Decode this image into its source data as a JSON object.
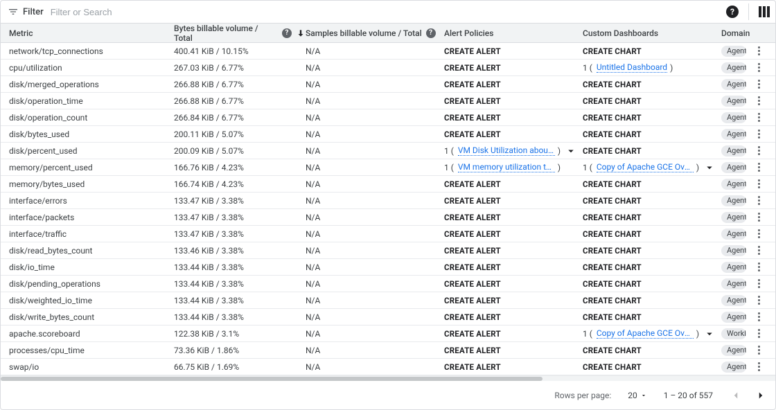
{
  "filter": {
    "label": "Filter",
    "placeholder": "Filter or Search"
  },
  "columns": {
    "metric": "Metric",
    "bytes": "Bytes billable volume / Total",
    "samples": "Samples billable volume / Total",
    "alert": "Alert Policies",
    "dash": "Custom Dashboards",
    "domain": "Domain"
  },
  "labels": {
    "create_alert": "CREATE ALERT",
    "create_chart": "CREATE CHART"
  },
  "pagination": {
    "rows_label": "Rows per page:",
    "rows_value": "20",
    "range": "1 – 20 of 557"
  },
  "domain_chips": {
    "agent": "Agent",
    "workload": "Workload"
  },
  "rows": [
    {
      "metric": "network/tcp_connections",
      "bytes": "400.41 KiB / 10.15%",
      "samples": "N/A",
      "alert": null,
      "dash": null,
      "domain": "agent"
    },
    {
      "metric": "cpu/utilization",
      "bytes": "267.03 KiB / 6.77%",
      "samples": "N/A",
      "alert": null,
      "dash": {
        "count": 1,
        "text": "Untitled Dashboard",
        "expand": false
      },
      "domain": "agent"
    },
    {
      "metric": "disk/merged_operations",
      "bytes": "266.88 KiB / 6.77%",
      "samples": "N/A",
      "alert": null,
      "dash": null,
      "domain": "agent"
    },
    {
      "metric": "disk/operation_time",
      "bytes": "266.88 KiB / 6.77%",
      "samples": "N/A",
      "alert": null,
      "dash": null,
      "domain": "agent"
    },
    {
      "metric": "disk/operation_count",
      "bytes": "266.84 KiB / 6.77%",
      "samples": "N/A",
      "alert": null,
      "dash": null,
      "domain": "agent"
    },
    {
      "metric": "disk/bytes_used",
      "bytes": "200.11 KiB / 5.07%",
      "samples": "N/A",
      "alert": null,
      "dash": null,
      "domain": "agent"
    },
    {
      "metric": "disk/percent_used",
      "bytes": "200.09 KiB / 5.07%",
      "samples": "N/A",
      "alert": {
        "count": 1,
        "text": "VM Disk Utilization about …",
        "expand": true
      },
      "dash": null,
      "domain": "agent"
    },
    {
      "metric": "memory/percent_used",
      "bytes": "166.76 KiB / 4.23%",
      "samples": "N/A",
      "alert": {
        "count": 1,
        "text": "VM memory utilization too high",
        "expand": false
      },
      "dash": {
        "count": 1,
        "text": "Copy of Apache GCE Over…",
        "expand": true
      },
      "domain": "agent"
    },
    {
      "metric": "memory/bytes_used",
      "bytes": "166.74 KiB / 4.23%",
      "samples": "N/A",
      "alert": null,
      "dash": null,
      "domain": "agent"
    },
    {
      "metric": "interface/errors",
      "bytes": "133.47 KiB / 3.38%",
      "samples": "N/A",
      "alert": null,
      "dash": null,
      "domain": "agent"
    },
    {
      "metric": "interface/packets",
      "bytes": "133.47 KiB / 3.38%",
      "samples": "N/A",
      "alert": null,
      "dash": null,
      "domain": "agent"
    },
    {
      "metric": "interface/traffic",
      "bytes": "133.47 KiB / 3.38%",
      "samples": "N/A",
      "alert": null,
      "dash": null,
      "domain": "agent"
    },
    {
      "metric": "disk/read_bytes_count",
      "bytes": "133.46 KiB / 3.38%",
      "samples": "N/A",
      "alert": null,
      "dash": null,
      "domain": "agent"
    },
    {
      "metric": "disk/io_time",
      "bytes": "133.44 KiB / 3.38%",
      "samples": "N/A",
      "alert": null,
      "dash": null,
      "domain": "agent"
    },
    {
      "metric": "disk/pending_operations",
      "bytes": "133.44 KiB / 3.38%",
      "samples": "N/A",
      "alert": null,
      "dash": null,
      "domain": "agent"
    },
    {
      "metric": "disk/weighted_io_time",
      "bytes": "133.44 KiB / 3.38%",
      "samples": "N/A",
      "alert": null,
      "dash": null,
      "domain": "agent"
    },
    {
      "metric": "disk/write_bytes_count",
      "bytes": "133.44 KiB / 3.38%",
      "samples": "N/A",
      "alert": null,
      "dash": null,
      "domain": "agent"
    },
    {
      "metric": "apache.scoreboard",
      "bytes": "122.38 KiB / 3.1%",
      "samples": "N/A",
      "alert": null,
      "dash": {
        "count": 1,
        "text": "Copy of Apache GCE Over…",
        "expand": true
      },
      "domain": "workload"
    },
    {
      "metric": "processes/cpu_time",
      "bytes": "73.36 KiB / 1.86%",
      "samples": "N/A",
      "alert": null,
      "dash": null,
      "domain": "agent"
    },
    {
      "metric": "swap/io",
      "bytes": "66.75 KiB / 1.69%",
      "samples": "N/A",
      "alert": null,
      "dash": null,
      "domain": "agent"
    }
  ]
}
